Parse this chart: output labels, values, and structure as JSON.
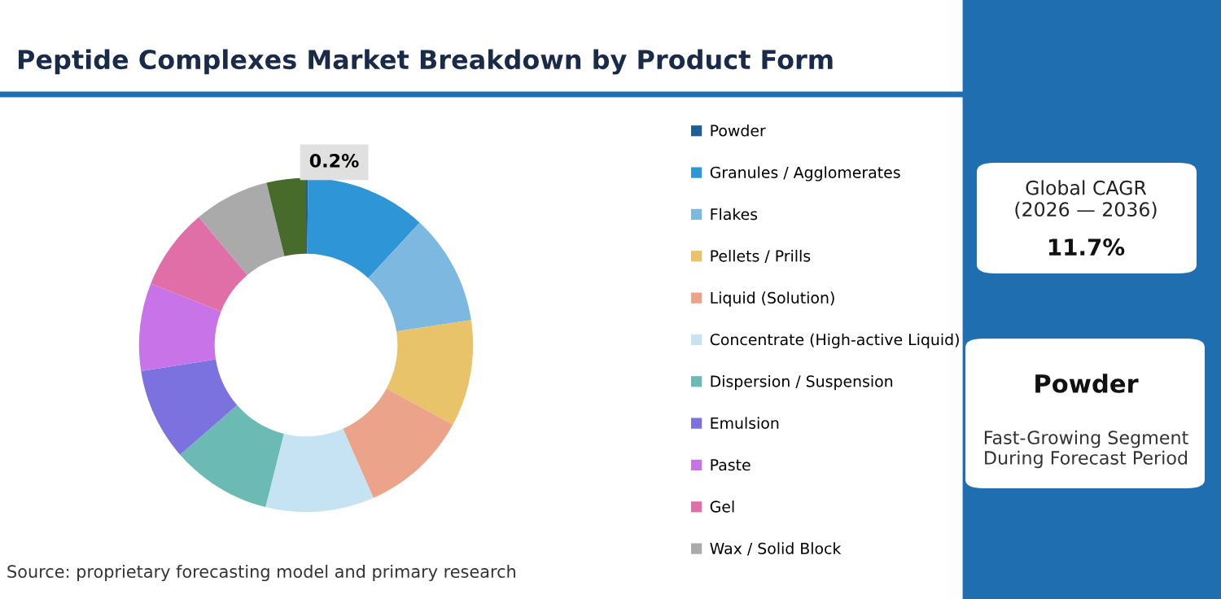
{
  "chart_data": {
    "type": "donut",
    "title": "Peptide Complexes Market Breakdown by Product Form",
    "categories": [
      "Powder",
      "Granules / Agglomerates",
      "Flakes",
      "Pellets / Prills",
      "Liquid (Solution)",
      "Concentrate (High-active Liquid)",
      "Dispersion / Suspension",
      "Emulsion",
      "Paste",
      "Gel",
      "Wax / Solid Block",
      null
    ],
    "values": [
      0.2,
      11.7,
      10.7,
      10.3,
      10.5,
      10.5,
      9.7,
      8.9,
      8.5,
      7.9,
      7.3,
      3.8
    ],
    "colors": [
      "#1f5e96",
      "#2e95d6",
      "#7db8e0",
      "#e8c36a",
      "#eba48a",
      "#c5e3f2",
      "#6bbab3",
      "#7b72e0",
      "#c873e8",
      "#e06fa8",
      "#aaaaaa",
      "#466b2b"
    ],
    "value_labels": [
      "0.2%",
      null,
      null,
      null,
      null,
      null,
      null,
      null,
      null,
      null,
      null,
      null
    ],
    "legend": "right",
    "annotations": [
      "Global CAGR\n(2026 — 2036)",
      "11.7%",
      "Powder",
      "Fast-Growing Segment\nDuring Forecast Period",
      "Source: proprietary forecasting model and primary research"
    ]
  }
}
